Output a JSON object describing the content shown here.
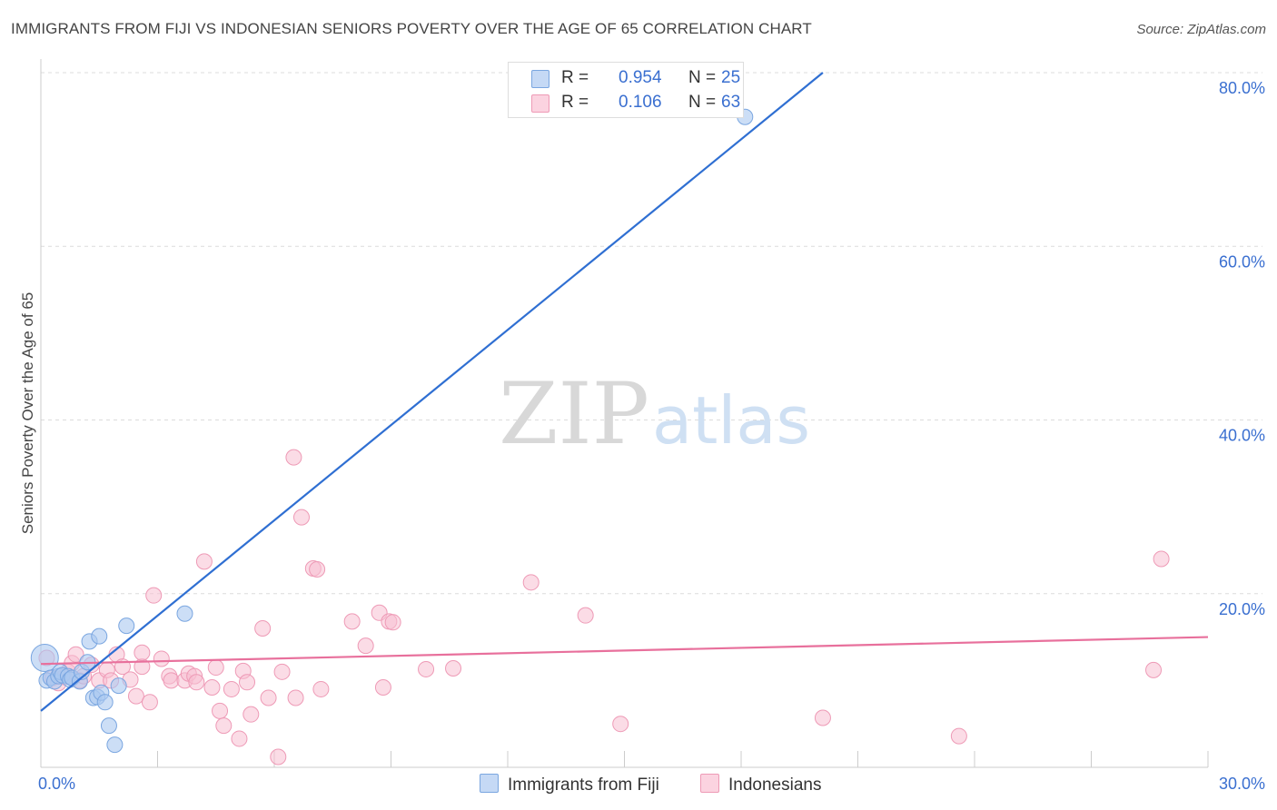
{
  "title": "IMMIGRANTS FROM FIJI VS INDONESIAN SENIORS POVERTY OVER THE AGE OF 65 CORRELATION CHART",
  "source": "Source: ZipAtlas.com",
  "watermark": {
    "zip": "ZIP",
    "atlas": "atlas"
  },
  "legend_top": [
    {
      "r_label": "R =",
      "r_value": "0.954",
      "n_label": "N =",
      "n_value": "25"
    },
    {
      "r_label": "R =",
      "r_value": "0.106",
      "n_label": "N =",
      "n_value": "63"
    }
  ],
  "colors": {
    "fiji_fill": "#aac8f0",
    "fiji_stroke": "#7aa6e0",
    "fiji_line": "#2f6fd2",
    "indo_fill": "#f8c0d2",
    "indo_stroke": "#ee9ab6",
    "indo_line": "#e8709c",
    "tick_blue": "#3a6fd0"
  },
  "chart_data": {
    "type": "scatter",
    "title": "IMMIGRANTS FROM FIJI VS INDONESIAN SENIORS POVERTY OVER THE AGE OF 65 CORRELATION CHART",
    "xlabel": "",
    "ylabel": "Seniors Poverty Over the Age of 65",
    "xlim": [
      0,
      30
    ],
    "ylim": [
      0,
      80
    ],
    "x_tick_labels": [
      {
        "value": 0,
        "label": "0.0%"
      },
      {
        "value": 30,
        "label": "30.0%"
      }
    ],
    "y_tick_labels": [
      {
        "value": 20,
        "label": "20.0%"
      },
      {
        "value": 40,
        "label": "40.0%"
      },
      {
        "value": 60,
        "label": "60.0%"
      },
      {
        "value": 80,
        "label": "80.0%"
      }
    ],
    "series": [
      {
        "name": "Immigrants from Fiji",
        "color": "#aac8f0",
        "points": [
          [
            0.1,
            12.6
          ],
          [
            0.15,
            10.0
          ],
          [
            0.25,
            10.3
          ],
          [
            0.35,
            9.9
          ],
          [
            0.45,
            10.5
          ],
          [
            0.5,
            11.0
          ],
          [
            0.55,
            10.6
          ],
          [
            0.7,
            10.5
          ],
          [
            0.75,
            10.1
          ],
          [
            0.8,
            10.3
          ],
          [
            1.0,
            9.9
          ],
          [
            1.05,
            11.0
          ],
          [
            1.2,
            12.1
          ],
          [
            1.25,
            14.5
          ],
          [
            1.35,
            8.0
          ],
          [
            1.45,
            8.1
          ],
          [
            1.55,
            8.6
          ],
          [
            1.5,
            15.1
          ],
          [
            1.65,
            7.5
          ],
          [
            1.75,
            4.8
          ],
          [
            1.9,
            2.6
          ],
          [
            2.0,
            9.4
          ],
          [
            2.2,
            16.3
          ],
          [
            3.7,
            17.7
          ],
          [
            18.1,
            74.9
          ]
        ],
        "trend": {
          "x": [
            0,
            20.1
          ],
          "y": [
            6.5,
            80.0
          ]
        }
      },
      {
        "name": "Indonesians",
        "color": "#f8c0d2",
        "points": [
          [
            0.15,
            12.6
          ],
          [
            0.3,
            10.3
          ],
          [
            0.45,
            9.7
          ],
          [
            0.6,
            10.4
          ],
          [
            0.7,
            11.0
          ],
          [
            0.8,
            12.0
          ],
          [
            0.9,
            13.0
          ],
          [
            1.0,
            10.0
          ],
          [
            1.1,
            10.5
          ],
          [
            1.3,
            11.8
          ],
          [
            1.5,
            10.0
          ],
          [
            1.7,
            11.2
          ],
          [
            1.8,
            10.0
          ],
          [
            1.95,
            13.0
          ],
          [
            2.1,
            11.6
          ],
          [
            2.3,
            10.1
          ],
          [
            2.45,
            8.2
          ],
          [
            2.6,
            11.6
          ],
          [
            2.6,
            13.2
          ],
          [
            2.8,
            7.5
          ],
          [
            2.9,
            19.8
          ],
          [
            3.1,
            12.5
          ],
          [
            3.3,
            10.5
          ],
          [
            3.35,
            10.0
          ],
          [
            3.7,
            10.0
          ],
          [
            3.8,
            10.8
          ],
          [
            3.95,
            10.5
          ],
          [
            4.0,
            9.8
          ],
          [
            4.2,
            23.7
          ],
          [
            4.4,
            9.2
          ],
          [
            4.5,
            11.5
          ],
          [
            4.6,
            6.5
          ],
          [
            4.7,
            4.8
          ],
          [
            4.9,
            9.0
          ],
          [
            5.1,
            3.3
          ],
          [
            5.2,
            11.1
          ],
          [
            5.3,
            9.8
          ],
          [
            5.4,
            6.1
          ],
          [
            5.7,
            16.0
          ],
          [
            5.85,
            8.0
          ],
          [
            6.1,
            1.2
          ],
          [
            6.2,
            11.0
          ],
          [
            6.5,
            35.7
          ],
          [
            6.55,
            8.0
          ],
          [
            6.7,
            28.8
          ],
          [
            7.0,
            22.9
          ],
          [
            7.1,
            22.8
          ],
          [
            7.2,
            9.0
          ],
          [
            8.0,
            16.8
          ],
          [
            8.35,
            14.0
          ],
          [
            8.7,
            17.8
          ],
          [
            8.8,
            9.2
          ],
          [
            8.95,
            16.8
          ],
          [
            9.05,
            16.7
          ],
          [
            9.9,
            11.3
          ],
          [
            10.6,
            11.4
          ],
          [
            12.6,
            21.3
          ],
          [
            14.0,
            17.5
          ],
          [
            14.9,
            5.0
          ],
          [
            20.1,
            5.7
          ],
          [
            23.6,
            3.6
          ],
          [
            28.6,
            11.2
          ],
          [
            28.8,
            24.0
          ]
        ],
        "trend": {
          "x": [
            0,
            30
          ],
          "y": [
            11.9,
            15.0
          ]
        }
      }
    ],
    "legend": [
      "Immigrants from Fiji",
      "Indonesians"
    ],
    "grid": true
  }
}
